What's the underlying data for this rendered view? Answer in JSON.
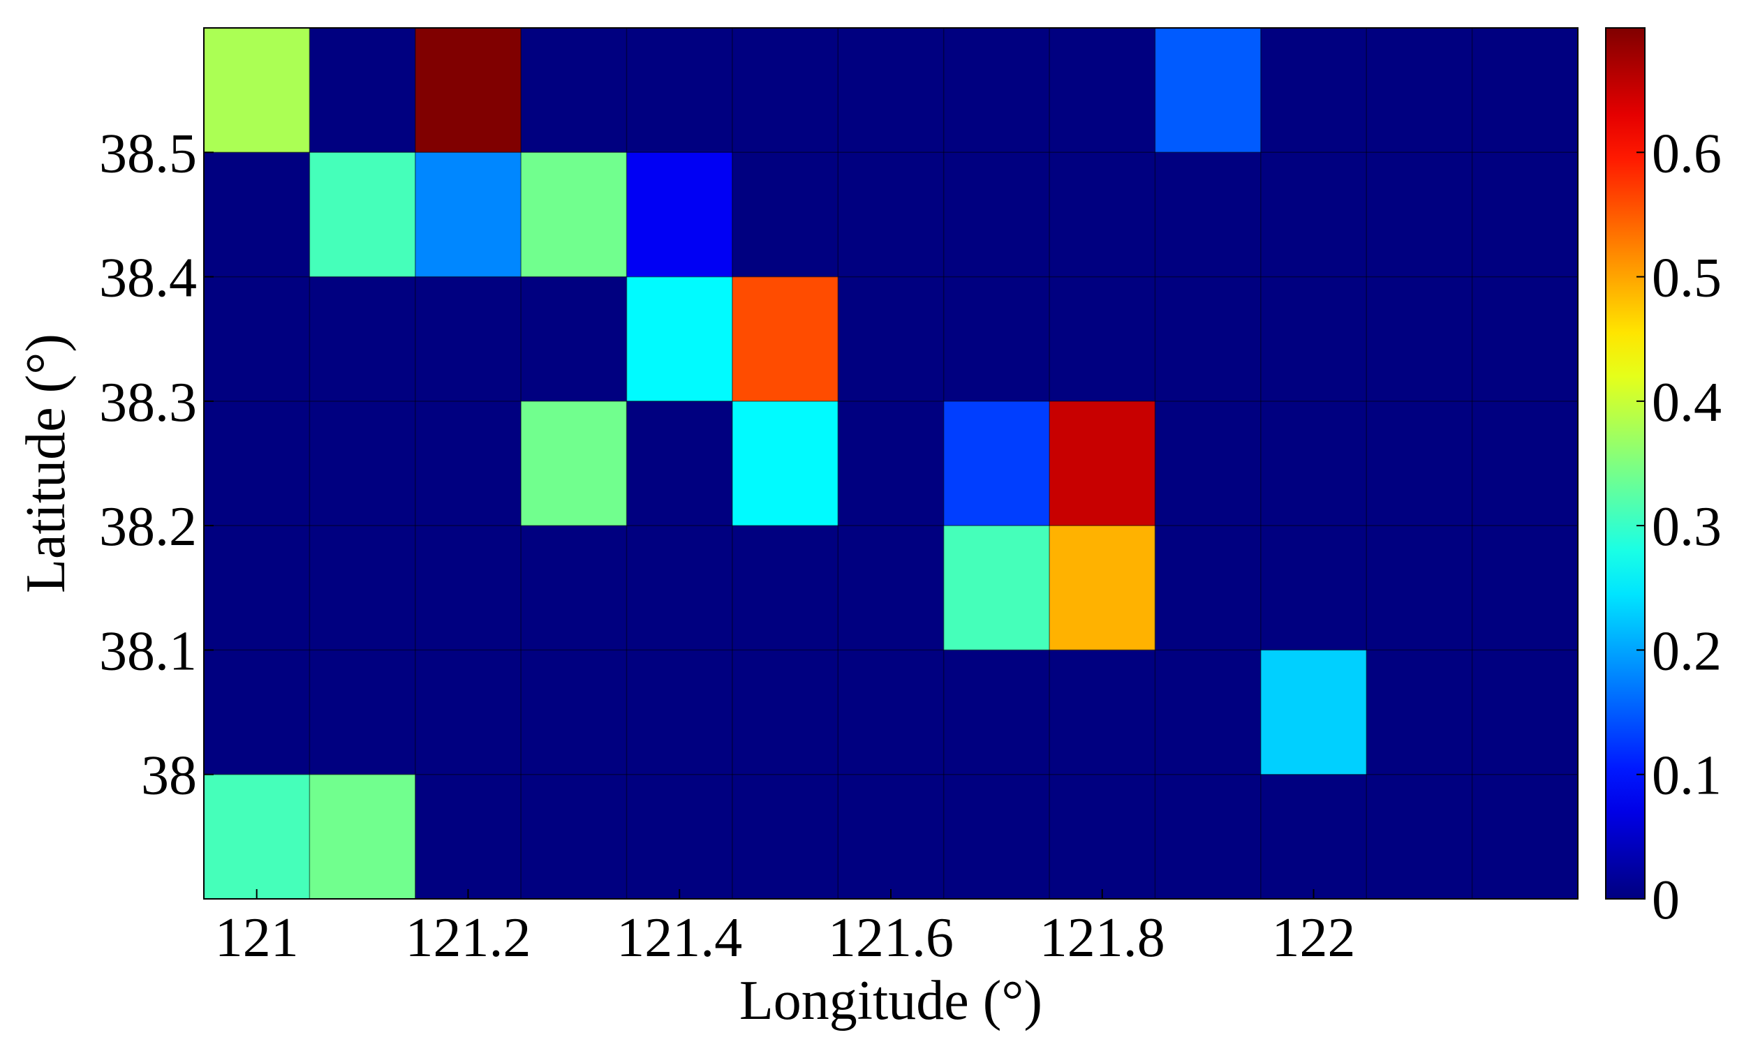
{
  "chart_data": {
    "type": "heatmap",
    "title": "",
    "xlabel": "Longitude (°)",
    "ylabel": "Latitude (°)",
    "x_centers": [
      121.0,
      121.1,
      121.2,
      121.3,
      121.4,
      121.5,
      121.6,
      121.7,
      121.8,
      121.9,
      122.0,
      122.1,
      122.2
    ],
    "y_centers": [
      38.55,
      38.45,
      38.35,
      38.25,
      38.15,
      38.05,
      37.95
    ],
    "xlim": [
      120.95,
      122.25
    ],
    "ylim": [
      37.9,
      38.6
    ],
    "x_ticks": [
      121,
      121.2,
      121.4,
      121.6,
      121.8,
      122
    ],
    "x_tick_labels": [
      "121",
      "121.2",
      "121.4",
      "121.6",
      "121.8",
      "122"
    ],
    "y_ticks": [
      38.0,
      38.1,
      38.2,
      38.3,
      38.4,
      38.5
    ],
    "y_tick_labels": [
      "38",
      "38.1",
      "38.2",
      "38.3",
      "38.4",
      "38.5"
    ],
    "values": [
      [
        0.38,
        0,
        0.7,
        0,
        0,
        0,
        0,
        0,
        0,
        0.15,
        0,
        0,
        0
      ],
      [
        0,
        0.31,
        0.18,
        0.34,
        0.08,
        0,
        0,
        0,
        0,
        0,
        0,
        0,
        0
      ],
      [
        0,
        0,
        0,
        0,
        0.26,
        0.56,
        0,
        0,
        0,
        0,
        0,
        0,
        0
      ],
      [
        0,
        0,
        0,
        0.34,
        0,
        0.26,
        0,
        0.13,
        0.65,
        0,
        0,
        0,
        0
      ],
      [
        0,
        0,
        0,
        0,
        0,
        0,
        0,
        0.31,
        0.49,
        0,
        0,
        0,
        0
      ],
      [
        0,
        0,
        0,
        0,
        0,
        0,
        0,
        0,
        0,
        0,
        0.23,
        0,
        0
      ],
      [
        0.31,
        0.34,
        0,
        0,
        0,
        0,
        0,
        0,
        0,
        0,
        0,
        0,
        0
      ]
    ],
    "colormap": "jet",
    "colorbar": {
      "range": [
        0,
        0.7
      ],
      "ticks": [
        0,
        0.1,
        0.2,
        0.3,
        0.4,
        0.5,
        0.6
      ],
      "tick_labels": [
        "0",
        "0.1",
        "0.2",
        "0.3",
        "0.4",
        "0.5",
        "0.6"
      ],
      "placement": "right"
    },
    "grid": true
  }
}
